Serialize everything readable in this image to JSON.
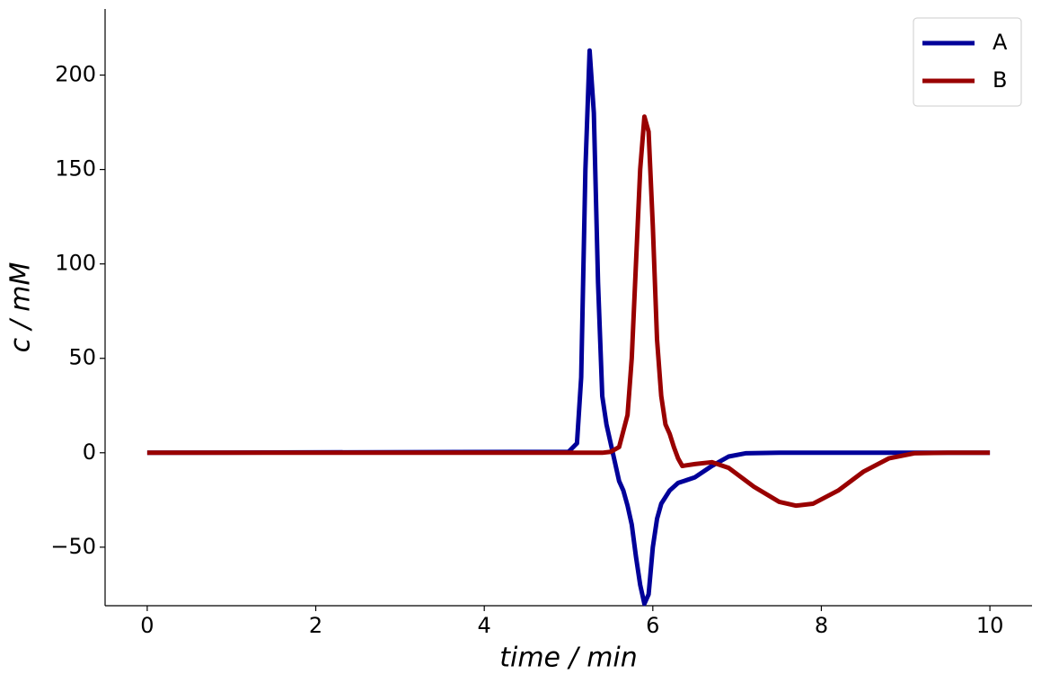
{
  "chart_data": {
    "type": "line",
    "xlabel": "time / min",
    "ylabel": "c / mM",
    "xlim": [
      -0.5,
      10.5
    ],
    "ylim": [
      -81,
      235
    ],
    "xticks": [
      0,
      2,
      4,
      6,
      8,
      10
    ],
    "yticks": [
      {
        "value": -50,
        "label": "−50"
      },
      0,
      50,
      100,
      150,
      200
    ],
    "legend": "upper right",
    "series": [
      {
        "name": "A",
        "color": "#000099",
        "x": [
          0,
          5.0,
          5.1,
          5.15,
          5.2,
          5.25,
          5.3,
          5.35,
          5.4,
          5.45,
          5.5,
          5.55,
          5.6,
          5.65,
          5.7,
          5.75,
          5.8,
          5.85,
          5.9,
          5.95,
          6.0,
          6.05,
          6.1,
          6.2,
          6.3,
          6.5,
          6.7,
          6.9,
          7.1,
          7.5,
          10
        ],
        "values": [
          0,
          0.5,
          5,
          40,
          150,
          213,
          180,
          90,
          30,
          15,
          5,
          -5,
          -15,
          -20,
          -28,
          -38,
          -55,
          -70,
          -80,
          -75,
          -50,
          -35,
          -27,
          -20,
          -16,
          -13,
          -7,
          -2,
          -0.3,
          0,
          0
        ]
      },
      {
        "name": "B",
        "color": "#990000",
        "x": [
          0,
          5.4,
          5.5,
          5.6,
          5.7,
          5.75,
          5.8,
          5.85,
          5.9,
          5.95,
          6.0,
          6.05,
          6.1,
          6.15,
          6.2,
          6.25,
          6.3,
          6.35,
          6.5,
          6.7,
          6.9,
          7.2,
          7.5,
          7.7,
          7.9,
          8.2,
          8.5,
          8.8,
          9.1,
          9.5,
          10
        ],
        "values": [
          0,
          0,
          0.5,
          3,
          20,
          50,
          100,
          150,
          178,
          170,
          120,
          60,
          30,
          15,
          10,
          3,
          -3,
          -7,
          -6,
          -5,
          -8,
          -18,
          -26,
          -28,
          -27,
          -20,
          -10,
          -3,
          -0.3,
          0,
          0
        ]
      }
    ]
  }
}
